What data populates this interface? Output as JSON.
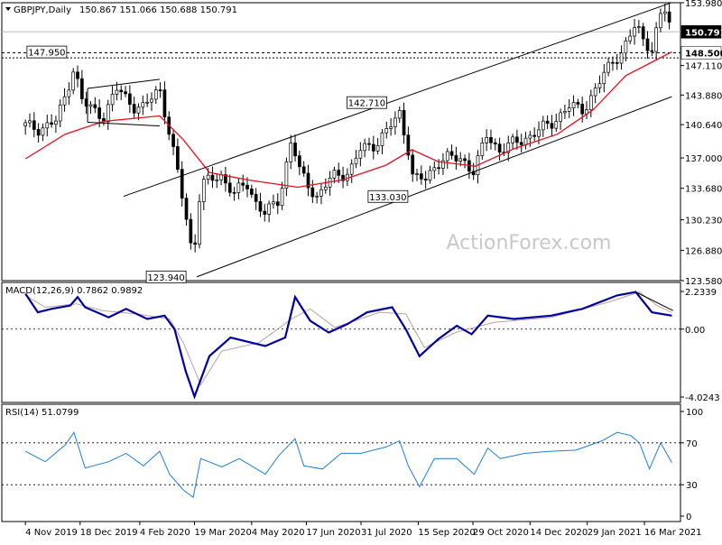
{
  "header": {
    "symbol": "GBPJPY,Daily",
    "ohlc": "150.867 151.066 150.688 150.791"
  },
  "watermark": "ActionForex.com",
  "colors": {
    "candle_up": "#ffffff",
    "candle_down": "#000000",
    "ma": "#e8101a",
    "macd": "#0000a0",
    "signal": "#c0a0a0",
    "rsi": "#1e7fd8",
    "trendline": "#000000"
  },
  "chart_data": [
    {
      "panel": "price",
      "type": "candlestick",
      "ylim": [
        123.58,
        153.98
      ],
      "y_ticks": [
        "153.980",
        "150.791",
        "148.500",
        "147.110",
        "143.880",
        "140.640",
        "137.000",
        "133.680",
        "130.230",
        "126.880",
        "123.580"
      ],
      "x_ticks": [
        "4 Nov 2019",
        "18 Dec 2019",
        "4 Feb 2020",
        "19 Mar 2020",
        "4 May 2020",
        "17 Jun 2020",
        "31 Jul 2020",
        "15 Sep 2020",
        "29 Oct 2020",
        "14 Dec 2020",
        "29 Jan 2021",
        "16 Mar 2021"
      ],
      "current_price": "150.791",
      "level_line": "148.500",
      "annotations": [
        {
          "text": "147.950",
          "value": 147.95,
          "date": "2019-12-13"
        },
        {
          "text": "142.710",
          "value": 142.71,
          "date": "2020-08-25"
        },
        {
          "text": "133.030",
          "value": 133.03,
          "date": "2020-09-11"
        },
        {
          "text": "123.940",
          "value": 123.94,
          "date": "2020-03-18"
        }
      ],
      "close_path": [
        [
          "2019-11-04",
          140.5
        ],
        [
          "2019-11-15",
          140.2
        ],
        [
          "2019-11-29",
          141.0
        ],
        [
          "2019-12-06",
          143.8
        ],
        [
          "2019-12-13",
          147.0
        ],
        [
          "2019-12-20",
          143.0
        ],
        [
          "2020-01-06",
          141.6
        ],
        [
          "2020-01-17",
          144.6
        ],
        [
          "2020-01-31",
          142.6
        ],
        [
          "2020-02-07",
          142.4
        ],
        [
          "2020-02-20",
          144.8
        ],
        [
          "2020-02-28",
          139.5
        ],
        [
          "2020-03-06",
          135.0
        ],
        [
          "2020-03-13",
          130.0
        ],
        [
          "2020-03-18",
          126.0
        ],
        [
          "2020-03-24",
          134.0
        ],
        [
          "2020-03-31",
          134.5
        ],
        [
          "2020-04-09",
          135.2
        ],
        [
          "2020-04-20",
          133.0
        ],
        [
          "2020-04-30",
          134.3
        ],
        [
          "2020-05-08",
          132.0
        ],
        [
          "2020-05-15",
          130.8
        ],
        [
          "2020-05-26",
          132.5
        ],
        [
          "2020-06-05",
          139.0
        ],
        [
          "2020-06-12",
          135.3
        ],
        [
          "2020-06-26",
          132.7
        ],
        [
          "2020-07-08",
          135.0
        ],
        [
          "2020-07-22",
          135.5
        ],
        [
          "2020-07-31",
          138.0
        ],
        [
          "2020-08-11",
          138.5
        ],
        [
          "2020-08-21",
          139.9
        ],
        [
          "2020-08-31",
          141.9
        ],
        [
          "2020-09-07",
          138.0
        ],
        [
          "2020-09-11",
          134.6
        ],
        [
          "2020-09-21",
          134.7
        ],
        [
          "2020-09-30",
          136.5
        ],
        [
          "2020-10-09",
          137.0
        ],
        [
          "2020-10-21",
          136.9
        ],
        [
          "2020-10-30",
          135.4
        ],
        [
          "2020-11-09",
          139.5
        ],
        [
          "2020-11-20",
          137.8
        ],
        [
          "2020-12-01",
          138.6
        ],
        [
          "2020-12-15",
          139.5
        ],
        [
          "2020-12-31",
          140.8
        ],
        [
          "2021-01-14",
          142.6
        ],
        [
          "2021-01-26",
          142.3
        ],
        [
          "2021-02-09",
          145.5
        ],
        [
          "2021-02-19",
          147.8
        ],
        [
          "2021-02-26",
          148.6
        ],
        [
          "2021-03-09",
          151.5
        ],
        [
          "2021-03-15",
          150.0
        ],
        [
          "2021-03-22",
          149.0
        ],
        [
          "2021-03-29",
          152.5
        ],
        [
          "2021-04-01",
          153.3
        ],
        [
          "2021-04-07",
          150.79
        ]
      ],
      "ma_series": {
        "points": [
          [
            "2019-11-04",
            136.9
          ],
          [
            "2019-12-06",
            139.6
          ],
          [
            "2020-01-06",
            141.0
          ],
          [
            "2020-02-20",
            141.6
          ],
          [
            "2020-03-10",
            139.0
          ],
          [
            "2020-03-31",
            135.4
          ],
          [
            "2020-05-01",
            134.6
          ],
          [
            "2020-06-10",
            133.8
          ],
          [
            "2020-07-16",
            134.6
          ],
          [
            "2020-08-20",
            136.2
          ],
          [
            "2020-09-10",
            137.9
          ],
          [
            "2020-10-01",
            136.6
          ],
          [
            "2020-10-31",
            136.1
          ],
          [
            "2020-12-01",
            138.0
          ],
          [
            "2021-01-05",
            139.6
          ],
          [
            "2021-02-03",
            142.3
          ],
          [
            "2021-03-01",
            146.0
          ],
          [
            "2021-04-07",
            148.6
          ]
        ]
      },
      "channel_upper": {
        "start": [
          "2020-01-22",
          132.8
        ],
        "end": [
          "2021-04-07",
          154.0
        ]
      },
      "channel_lower": {
        "start": [
          "2020-03-21",
          124.0
        ],
        "end": [
          "2021-04-07",
          143.7
        ]
      },
      "flag_box": {
        "upper": {
          "start": [
            "2019-12-24",
            144.6
          ],
          "end": [
            "2020-02-20",
            145.6
          ]
        },
        "lower": {
          "start": [
            "2019-12-24",
            140.9
          ],
          "end": [
            "2020-02-20",
            140.5
          ]
        }
      }
    },
    {
      "panel": "macd",
      "type": "line",
      "title": "MACD(12,26,9) 0.7862 0.9892",
      "ylim": [
        -4.0243,
        2.2339
      ],
      "y_ticks": [
        "2.2339",
        "0.00",
        "-4.0243"
      ],
      "series": [
        {
          "role": "macd",
          "points": [
            [
              "2019-11-04",
              2.1
            ],
            [
              "2019-11-14",
              1.0
            ],
            [
              "2019-11-25",
              1.2
            ],
            [
              "2019-12-10",
              1.4
            ],
            [
              "2019-12-16",
              1.9
            ],
            [
              "2019-12-22",
              1.3
            ],
            [
              "2020-01-10",
              0.7
            ],
            [
              "2020-01-24",
              1.2
            ],
            [
              "2020-02-10",
              0.6
            ],
            [
              "2020-02-24",
              0.8
            ],
            [
              "2020-03-03",
              0.0
            ],
            [
              "2020-03-12",
              -2.5
            ],
            [
              "2020-03-19",
              -4.0
            ],
            [
              "2020-03-31",
              -1.6
            ],
            [
              "2020-04-17",
              -0.5
            ],
            [
              "2020-05-15",
              -1.0
            ],
            [
              "2020-05-31",
              -0.5
            ],
            [
              "2020-06-08",
              1.9
            ],
            [
              "2020-06-20",
              0.5
            ],
            [
              "2020-07-05",
              -0.2
            ],
            [
              "2020-07-20",
              0.3
            ],
            [
              "2020-08-05",
              1.0
            ],
            [
              "2020-08-25",
              1.3
            ],
            [
              "2020-09-05",
              0.0
            ],
            [
              "2020-09-16",
              -1.6
            ],
            [
              "2020-10-01",
              -0.6
            ],
            [
              "2020-10-16",
              0.2
            ],
            [
              "2020-10-28",
              -0.3
            ],
            [
              "2020-11-10",
              0.8
            ],
            [
              "2020-12-01",
              0.6
            ],
            [
              "2020-12-31",
              0.8
            ],
            [
              "2021-01-25",
              1.2
            ],
            [
              "2021-02-22",
              2.0
            ],
            [
              "2021-03-09",
              2.2
            ],
            [
              "2021-03-22",
              1.0
            ],
            [
              "2021-04-07",
              0.8
            ]
          ]
        },
        {
          "role": "signal",
          "points": [
            [
              "2019-11-04",
              2.0
            ],
            [
              "2019-11-20",
              1.3
            ],
            [
              "2019-12-15",
              1.5
            ],
            [
              "2020-01-05",
              1.1
            ],
            [
              "2020-02-01",
              0.9
            ],
            [
              "2020-02-28",
              0.6
            ],
            [
              "2020-03-10",
              -0.8
            ],
            [
              "2020-03-24",
              -3.3
            ],
            [
              "2020-04-10",
              -1.3
            ],
            [
              "2020-05-10",
              -0.8
            ],
            [
              "2020-06-05",
              0.6
            ],
            [
              "2020-06-20",
              1.2
            ],
            [
              "2020-07-10",
              0.1
            ],
            [
              "2020-08-15",
              1.0
            ],
            [
              "2020-09-05",
              0.9
            ],
            [
              "2020-09-20",
              -1.1
            ],
            [
              "2020-10-15",
              -0.2
            ],
            [
              "2020-11-15",
              0.4
            ],
            [
              "2020-12-31",
              0.7
            ],
            [
              "2021-02-15",
              1.6
            ],
            [
              "2021-03-12",
              2.2
            ],
            [
              "2021-03-26",
              1.4
            ],
            [
              "2021-04-07",
              0.99
            ]
          ]
        }
      ],
      "trendline": {
        "start": [
          "2021-03-09",
          2.2
        ],
        "end": [
          "2021-04-08",
          1.1
        ]
      }
    },
    {
      "panel": "rsi",
      "type": "line",
      "title": "RSI(14) 51.0799",
      "ylim": [
        0,
        100
      ],
      "y_ticks": [
        "100",
        "70",
        "30",
        "0"
      ],
      "levels": [
        70,
        30
      ],
      "series": [
        {
          "role": "rsi",
          "points": [
            [
              "2019-11-04",
              62
            ],
            [
              "2019-11-20",
              52
            ],
            [
              "2019-12-06",
              68
            ],
            [
              "2019-12-13",
              80
            ],
            [
              "2019-12-22",
              46
            ],
            [
              "2020-01-10",
              52
            ],
            [
              "2020-01-24",
              60
            ],
            [
              "2020-02-07",
              48
            ],
            [
              "2020-02-20",
              62
            ],
            [
              "2020-02-28",
              40
            ],
            [
              "2020-03-10",
              25
            ],
            [
              "2020-03-18",
              18
            ],
            [
              "2020-03-24",
              55
            ],
            [
              "2020-04-10",
              47
            ],
            [
              "2020-04-24",
              55
            ],
            [
              "2020-05-15",
              40
            ],
            [
              "2020-05-26",
              58
            ],
            [
              "2020-06-08",
              74
            ],
            [
              "2020-06-15",
              48
            ],
            [
              "2020-06-30",
              45
            ],
            [
              "2020-07-15",
              60
            ],
            [
              "2020-07-31",
              60
            ],
            [
              "2020-08-20",
              66
            ],
            [
              "2020-08-31",
              72
            ],
            [
              "2020-09-07",
              48
            ],
            [
              "2020-09-16",
              28
            ],
            [
              "2020-09-28",
              55
            ],
            [
              "2020-10-16",
              55
            ],
            [
              "2020-10-30",
              40
            ],
            [
              "2020-11-10",
              65
            ],
            [
              "2020-11-20",
              55
            ],
            [
              "2020-12-10",
              60
            ],
            [
              "2020-12-31",
              62
            ],
            [
              "2021-01-20",
              63
            ],
            [
              "2021-02-10",
              72
            ],
            [
              "2021-02-22",
              80
            ],
            [
              "2021-03-05",
              77
            ],
            [
              "2021-03-12",
              70
            ],
            [
              "2021-03-20",
              45
            ],
            [
              "2021-03-29",
              70
            ],
            [
              "2021-04-07",
              51
            ]
          ]
        }
      ]
    }
  ]
}
